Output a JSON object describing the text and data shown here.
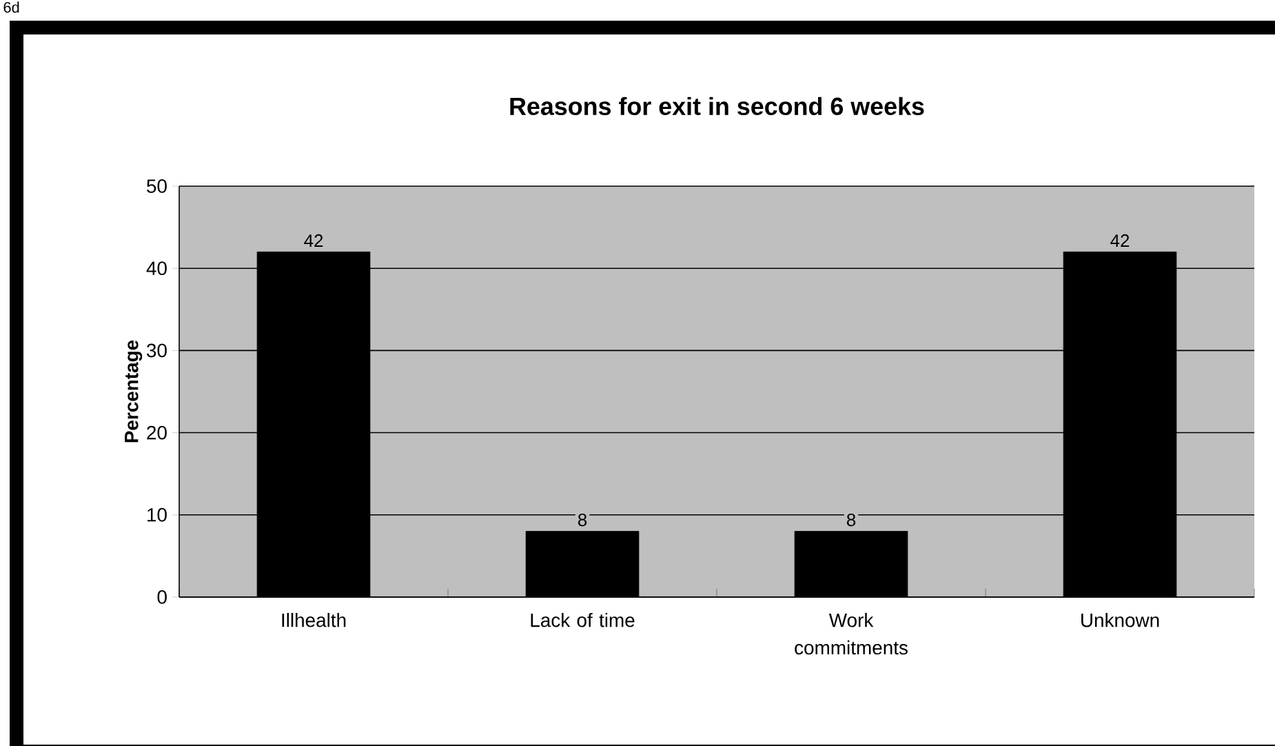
{
  "chart_data": {
    "type": "bar",
    "title": "Reasons for exit in second 6 weeks",
    "ylabel": "Percentage",
    "categories": [
      "Illhealth",
      "Lack of time",
      "Work commitments",
      "Unknown"
    ],
    "values": [
      42,
      8,
      8,
      42
    ],
    "color": "#000000",
    "ylim": [
      0,
      50
    ],
    "yticks": [
      0,
      10,
      20,
      30,
      40,
      50
    ],
    "grid": "y",
    "data_labels": true,
    "annotations": [
      "6d"
    ]
  }
}
